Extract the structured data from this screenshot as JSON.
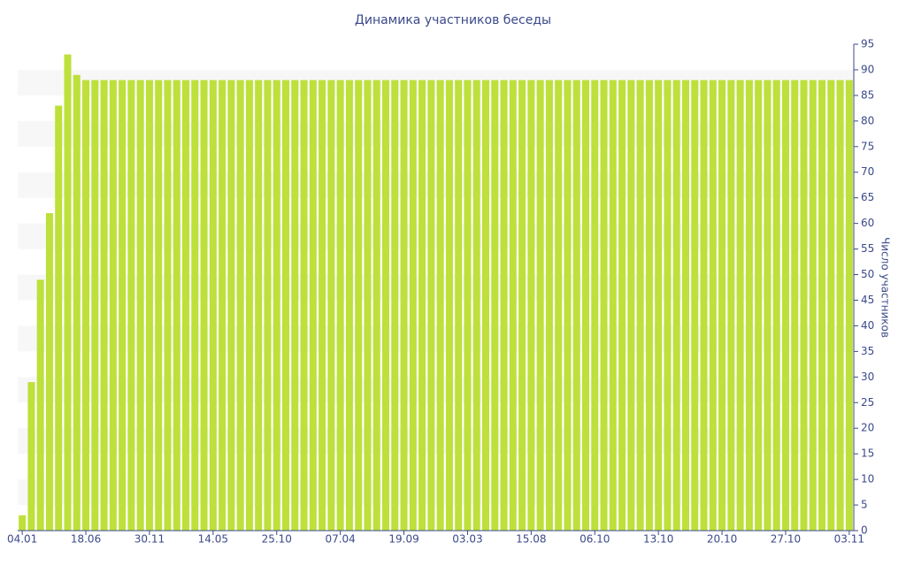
{
  "chart_data": {
    "type": "bar",
    "title": "Динамика участников беседы",
    "y_axis_label": "Число участников",
    "categories": [
      "04.01",
      null,
      null,
      null,
      null,
      null,
      null,
      "18.06",
      null,
      null,
      null,
      null,
      null,
      null,
      "30.11",
      null,
      null,
      null,
      null,
      null,
      null,
      "14.05",
      null,
      null,
      null,
      null,
      null,
      null,
      "25.10",
      null,
      null,
      null,
      null,
      null,
      null,
      "07.04",
      null,
      null,
      null,
      null,
      null,
      null,
      "19.09",
      null,
      null,
      null,
      null,
      null,
      null,
      "03.03",
      null,
      null,
      null,
      null,
      null,
      null,
      "15.08",
      null,
      null,
      null,
      null,
      null,
      null,
      "06.10",
      null,
      null,
      null,
      null,
      null,
      null,
      "13.10",
      null,
      null,
      null,
      null,
      null,
      null,
      "20.10",
      null,
      null,
      null,
      null,
      null,
      null,
      "27.10",
      null,
      null,
      null,
      null,
      null,
      null,
      "03.11"
    ],
    "values": [
      3,
      29,
      49,
      62,
      83,
      93,
      89,
      88,
      88,
      88,
      88,
      88,
      88,
      88,
      88,
      88,
      88,
      88,
      88,
      88,
      88,
      88,
      88,
      88,
      88,
      88,
      88,
      88,
      88,
      88,
      88,
      88,
      88,
      88,
      88,
      88,
      88,
      88,
      88,
      88,
      88,
      88,
      88,
      88,
      88,
      88,
      88,
      88,
      88,
      88,
      88,
      88,
      88,
      88,
      88,
      88,
      88,
      88,
      88,
      88,
      88,
      88,
      88,
      88,
      88,
      88,
      88,
      88,
      88,
      88,
      88,
      88,
      88,
      88,
      88,
      88,
      88,
      88,
      88,
      88,
      88,
      88,
      88,
      88,
      88,
      88,
      88,
      88,
      88,
      88,
      88,
      88
    ],
    "color": "#bde03a",
    "ylim": [
      0,
      95
    ],
    "yticks": [
      0,
      5,
      10,
      15,
      20,
      25,
      30,
      35,
      40,
      45,
      50,
      55,
      60,
      65,
      70,
      75,
      80,
      85,
      90,
      95
    ],
    "y_axis_side": "right"
  }
}
